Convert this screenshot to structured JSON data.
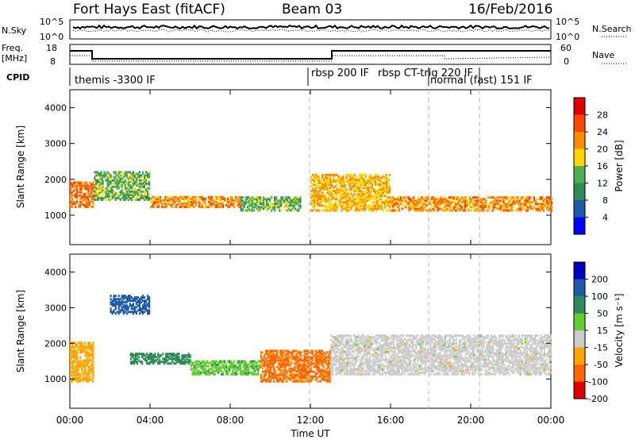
{
  "header": {
    "station": "Fort Hays East (fitACF)",
    "beam": "Beam 03",
    "date": "16/Feb/2016"
  },
  "noise_panel": {
    "left_label": "N.Sky",
    "right_label": "N.Search",
    "left_ticks": [
      "10^5",
      "10^0"
    ],
    "right_ticks": [
      "10^5",
      "10^0"
    ]
  },
  "freq_panel": {
    "left_label_top": "Freq.",
    "left_label_bottom": "[MHz]",
    "right_label": "Nave",
    "left_ticks": [
      "18",
      "8"
    ],
    "right_ticks": [
      "60",
      "0"
    ]
  },
  "cpid": {
    "label": "CPID",
    "segments": [
      "themis -3300 IF",
      "rbsp 200 IF",
      "rbsp CT-trig 220 IF",
      "normal (fast) 151 IF"
    ]
  },
  "axes": {
    "ylabel": "Slant Range [km]",
    "xlabel": "Time UT",
    "y_ticks": [
      "1000",
      "2000",
      "3000",
      "4000"
    ],
    "x_ticks": [
      "00:00",
      "04:00",
      "08:00",
      "12:00",
      "16:00",
      "20:00",
      "00:00"
    ]
  },
  "power_scale": {
    "label": "Power [dB]",
    "ticks": [
      "4",
      "8",
      "12",
      "16",
      "20",
      "24",
      "28"
    ],
    "colors": [
      "#0000ff",
      "#1e5aa8",
      "#2e8b57",
      "#4caf50",
      "#ffd700",
      "#ff8c00",
      "#ff4500",
      "#e00000"
    ]
  },
  "velocity_scale": {
    "label": "Velocity [m s⁻¹]",
    "ticks": [
      "200",
      "100",
      "50",
      "15",
      "-15",
      "-50",
      "-100",
      "-200"
    ],
    "colors": [
      "#0000c0",
      "#1e5aa8",
      "#2e8b57",
      "#66cc33",
      "#cccccc",
      "#ffa500",
      "#ff6600",
      "#e00000"
    ]
  },
  "chart_data": {
    "type": "heatmap",
    "x_range_hours": [
      0,
      24
    ],
    "y_range_km": [
      180,
      4500
    ],
    "cpid_change_times_hours": [
      12.0,
      18.0,
      20.5
    ],
    "power_echo_bands": [
      {
        "t": [
          0,
          1.2
        ],
        "range_km": [
          1200,
          1900
        ],
        "power_db": 24
      },
      {
        "t": [
          1.2,
          4.0
        ],
        "range_km": [
          1400,
          2200
        ],
        "power_db": 14
      },
      {
        "t": [
          4.0,
          8.5
        ],
        "range_km": [
          1200,
          1500
        ],
        "power_db": 22
      },
      {
        "t": [
          8.5,
          11.5
        ],
        "range_km": [
          1100,
          1500
        ],
        "power_db": 14
      },
      {
        "t": [
          12.0,
          16.0
        ],
        "range_km": [
          1100,
          2100
        ],
        "power_db": 20
      },
      {
        "t": [
          16.0,
          24.0
        ],
        "range_km": [
          1100,
          1500
        ],
        "power_db": 22
      }
    ],
    "velocity_echo_bands": [
      {
        "t": [
          0,
          1.2
        ],
        "range_km": [
          900,
          2000
        ],
        "velocity": -30
      },
      {
        "t": [
          2.0,
          4.0
        ],
        "range_km": [
          2800,
          3300
        ],
        "velocity": 120
      },
      {
        "t": [
          3.0,
          6.0
        ],
        "range_km": [
          1400,
          1700
        ],
        "velocity": 80
      },
      {
        "t": [
          6.0,
          9.5
        ],
        "range_km": [
          1100,
          1500
        ],
        "velocity": 40
      },
      {
        "t": [
          9.5,
          13.0
        ],
        "range_km": [
          900,
          1800
        ],
        "velocity": -60
      },
      {
        "t": [
          13.0,
          24.0
        ],
        "range_km": [
          1100,
          2200
        ],
        "velocity": 0
      }
    ]
  }
}
